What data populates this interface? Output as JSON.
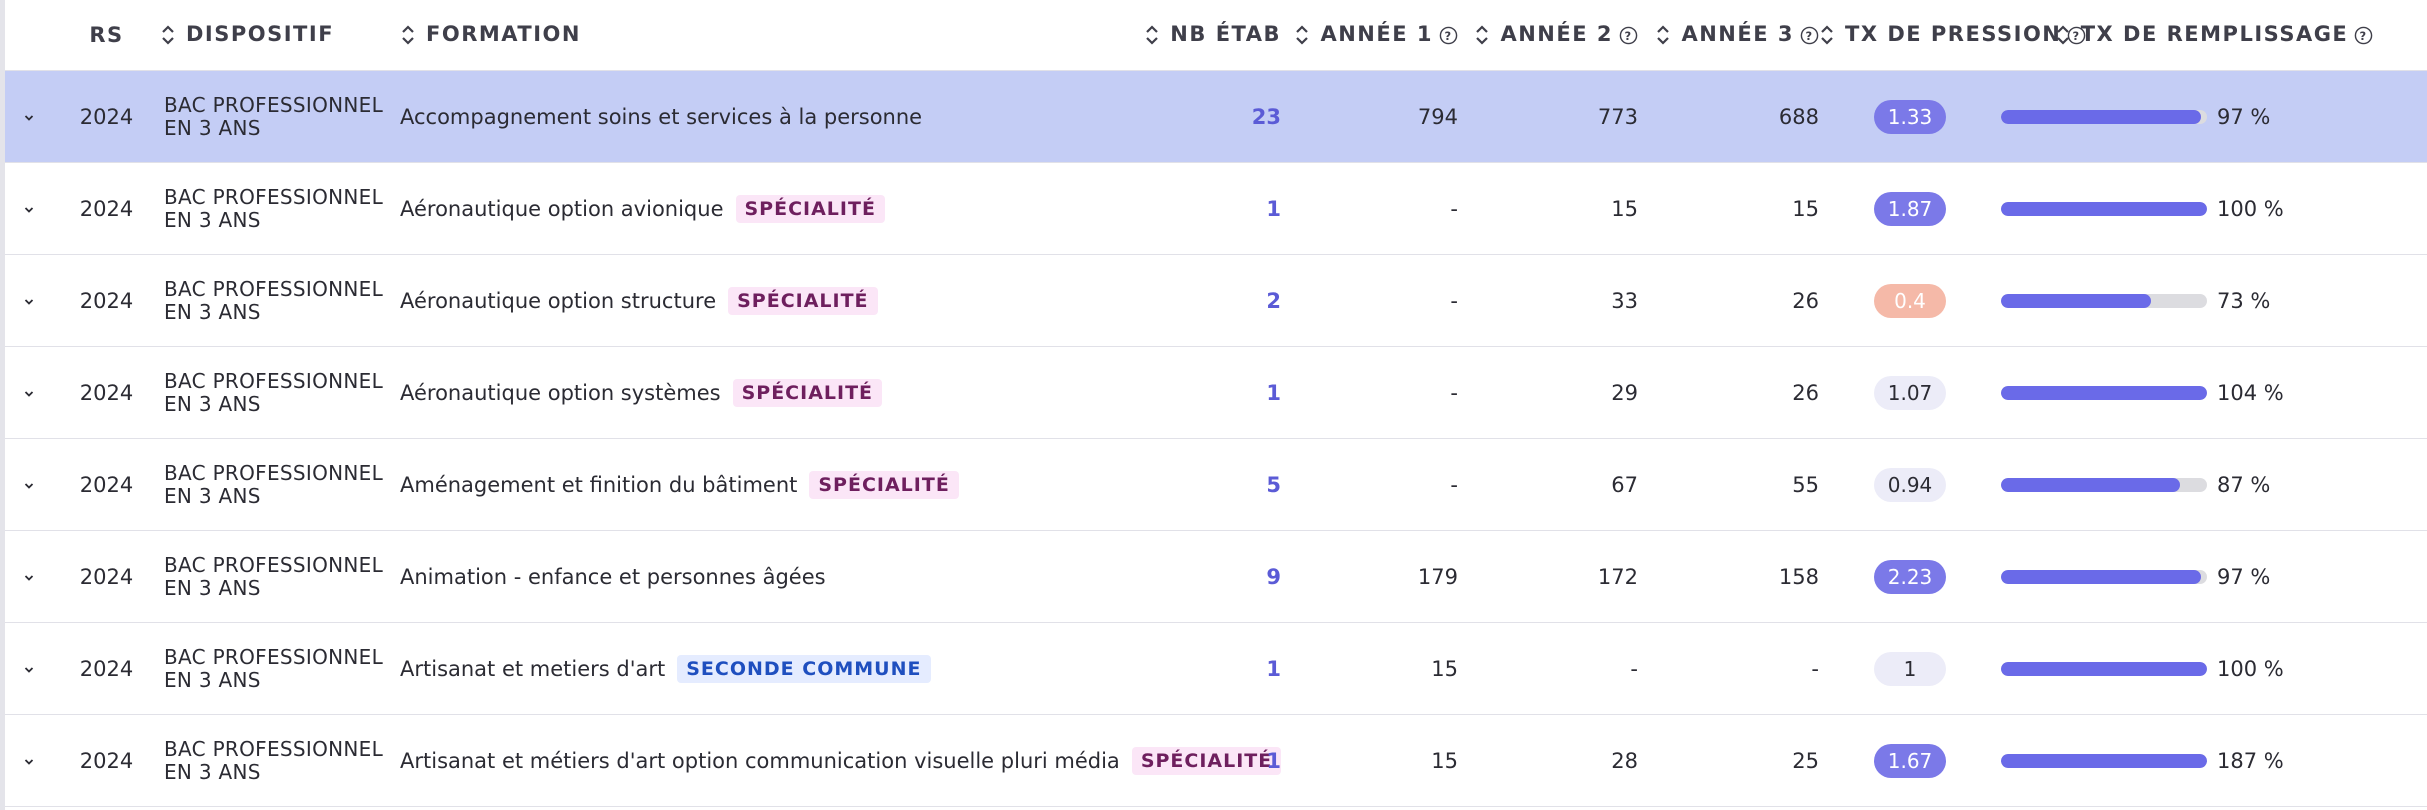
{
  "headers": {
    "rs": "RS",
    "dispositif": "DISPOSITIF",
    "formation": "FORMATION",
    "nb_etab": "NB ÉTAB",
    "annee1": "ANNÉE 1",
    "annee2": "ANNÉE 2",
    "annee3": "ANNÉE 3",
    "tx_pression": "TX DE PRESSION",
    "tx_remplissage": "TX DE REMPLISSAGE"
  },
  "colors": {
    "selected_row": "#c4cdf5",
    "accent": "#5b5bd6",
    "bar_fill": "#6a6ae8",
    "pill_strong": "#7b79e8",
    "pill_low": "#f5b9a8",
    "tag_specialite_bg": "#fbe6f7",
    "tag_seconde_bg": "#e5ecff"
  },
  "rows": [
    {
      "selected": true,
      "year": "2024",
      "dispositif": "BAC PROFESSIONNEL EN 3 ANS",
      "formation": "Accompagnement soins et services à la personne",
      "tag": "",
      "tag_type": "",
      "nb_etab": "23",
      "annee1": "794",
      "annee2": "773",
      "annee3": "688",
      "tx_pression": "1.33",
      "pression_style": "strong",
      "tx_remplissage": "97 %",
      "fill": 0.97
    },
    {
      "selected": false,
      "year": "2024",
      "dispositif": "BAC PROFESSIONNEL EN 3 ANS",
      "formation": "Aéronautique option avionique",
      "tag": "SPÉCIALITÉ",
      "tag_type": "spec",
      "nb_etab": "1",
      "annee1": "-",
      "annee2": "15",
      "annee3": "15",
      "tx_pression": "1.87",
      "pression_style": "strong",
      "tx_remplissage": "100 %",
      "fill": 1.0
    },
    {
      "selected": false,
      "year": "2024",
      "dispositif": "BAC PROFESSIONNEL EN 3 ANS",
      "formation": "Aéronautique option structure",
      "tag": "SPÉCIALITÉ",
      "tag_type": "spec",
      "nb_etab": "2",
      "annee1": "-",
      "annee2": "33",
      "annee3": "26",
      "tx_pression": "0.4",
      "pression_style": "low",
      "tx_remplissage": "73 %",
      "fill": 0.73
    },
    {
      "selected": false,
      "year": "2024",
      "dispositif": "BAC PROFESSIONNEL EN 3 ANS",
      "formation": "Aéronautique option systèmes",
      "tag": "SPÉCIALITÉ",
      "tag_type": "spec",
      "nb_etab": "1",
      "annee1": "-",
      "annee2": "29",
      "annee3": "26",
      "tx_pression": "1.07",
      "pression_style": "light",
      "tx_remplissage": "104 %",
      "fill": 1.0
    },
    {
      "selected": false,
      "year": "2024",
      "dispositif": "BAC PROFESSIONNEL EN 3 ANS",
      "formation": "Aménagement et finition du bâtiment",
      "tag": "SPÉCIALITÉ",
      "tag_type": "spec",
      "nb_etab": "5",
      "annee1": "-",
      "annee2": "67",
      "annee3": "55",
      "tx_pression": "0.94",
      "pression_style": "light",
      "tx_remplissage": "87 %",
      "fill": 0.87
    },
    {
      "selected": false,
      "year": "2024",
      "dispositif": "BAC PROFESSIONNEL EN 3 ANS",
      "formation": "Animation - enfance et personnes âgées",
      "tag": "",
      "tag_type": "",
      "nb_etab": "9",
      "annee1": "179",
      "annee2": "172",
      "annee3": "158",
      "tx_pression": "2.23",
      "pression_style": "strong",
      "tx_remplissage": "97 %",
      "fill": 0.97
    },
    {
      "selected": false,
      "year": "2024",
      "dispositif": "BAC PROFESSIONNEL EN 3 ANS",
      "formation": "Artisanat et metiers d'art",
      "tag": "SECONDE COMMUNE",
      "tag_type": "seconde",
      "nb_etab": "1",
      "annee1": "15",
      "annee2": "-",
      "annee3": "-",
      "tx_pression": "1",
      "pression_style": "light",
      "tx_remplissage": "100 %",
      "fill": 1.0
    },
    {
      "selected": false,
      "year": "2024",
      "dispositif": "BAC PROFESSIONNEL EN 3 ANS",
      "formation": "Artisanat et métiers d'art option communication visuelle pluri média",
      "tag": "SPÉCIALITÉ",
      "tag_type": "spec",
      "nb_etab": "1",
      "annee1": "15",
      "annee2": "28",
      "annee3": "25",
      "tx_pression": "1.67",
      "pression_style": "strong",
      "tx_remplissage": "187 %",
      "fill": 1.0
    }
  ]
}
